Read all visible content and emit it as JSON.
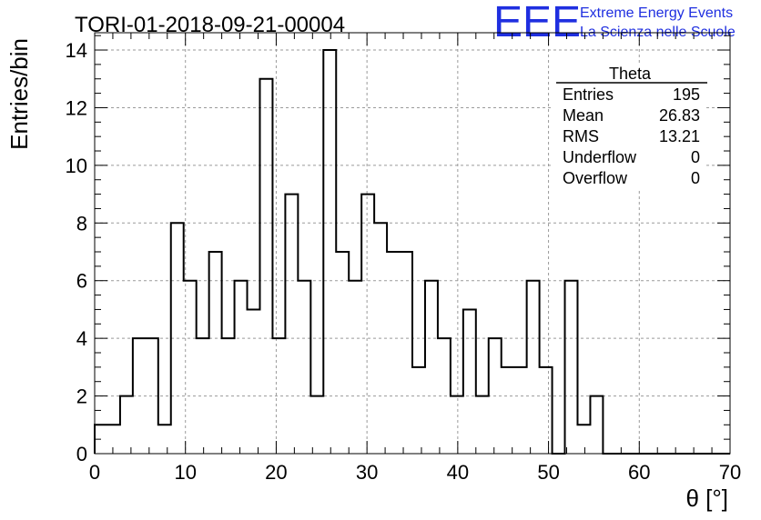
{
  "header": {
    "title": "TORI-01-2018-09-21-00004",
    "logo_text": "EEE",
    "logo_line1": "Extreme Energy Events",
    "logo_line2": "La Scienza nelle Scuole",
    "logo_color": "#1f2fe0"
  },
  "stats_box": {
    "title": "Theta",
    "rows": [
      {
        "label": "Entries",
        "value": "195"
      },
      {
        "label": "Mean",
        "value": "26.83"
      },
      {
        "label": "RMS",
        "value": "13.21"
      },
      {
        "label": "Underflow",
        "value": "0"
      },
      {
        "label": "Overflow",
        "value": "0"
      }
    ]
  },
  "chart_data": {
    "type": "histogram",
    "title": "TORI-01-2018-09-21-00004",
    "xlabel": "θ [°]",
    "ylabel": "Entries/bin",
    "xlim": [
      0,
      70
    ],
    "ylim": [
      0,
      14.6
    ],
    "bin_width": 1.4,
    "bin_start": 0,
    "x_ticks": [
      0,
      10,
      20,
      30,
      40,
      50,
      60,
      70
    ],
    "y_ticks": [
      0,
      2,
      4,
      6,
      8,
      10,
      12,
      14
    ],
    "grid": true,
    "line_color": "#000000",
    "values": [
      1,
      1,
      2,
      4,
      4,
      1,
      8,
      6,
      4,
      7,
      4,
      6,
      5,
      13,
      4,
      9,
      6,
      2,
      14,
      7,
      6,
      9,
      8,
      7,
      7,
      3,
      6,
      4,
      2,
      5,
      2,
      4,
      3,
      3,
      6,
      3,
      0,
      6,
      1,
      2,
      0,
      0,
      0,
      0,
      0,
      0,
      0,
      0,
      0,
      0
    ]
  }
}
